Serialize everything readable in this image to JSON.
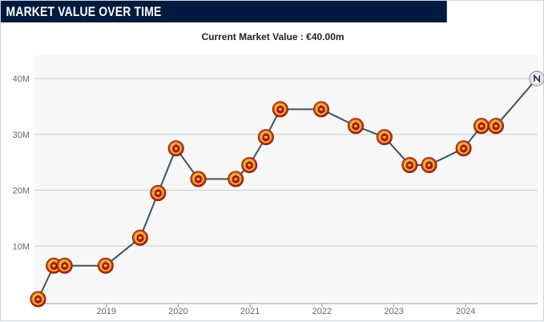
{
  "header": {
    "title": "MARKET VALUE OVER TIME"
  },
  "summary": {
    "label": "Current Market Value : ",
    "value": "€40.00m"
  },
  "colors": {
    "header_bg": "#001a3f",
    "line": "#3d4f66",
    "plot_bg": "#f7f7f7",
    "grid": "#cccccc",
    "marker_red": "#d3200a",
    "marker_gold": "#f0b428"
  },
  "chart_data": {
    "type": "line",
    "title": "",
    "xlabel": "",
    "ylabel": "",
    "ylim": [
      0,
      40000000
    ],
    "y_ticks": [
      {
        "value": 10000000,
        "label": "10M"
      },
      {
        "value": 20000000,
        "label": "20M"
      },
      {
        "value": 30000000,
        "label": "30M"
      },
      {
        "value": 40000000,
        "label": "40M"
      }
    ],
    "x_ticks": [
      {
        "value": 2019,
        "label": "2019"
      },
      {
        "value": 2020,
        "label": "2020"
      },
      {
        "value": 2021,
        "label": "2021"
      },
      {
        "value": 2022,
        "label": "2022"
      },
      {
        "value": 2023,
        "label": "2023"
      },
      {
        "value": 2024,
        "label": "2024"
      }
    ],
    "grid": true,
    "legend": "none",
    "series": [
      {
        "points": [
          {
            "date": 2018.05,
            "value": 500000,
            "club_icon": "club-crest-icon"
          },
          {
            "date": 2018.27,
            "value": 6500000,
            "club_icon": "club-crest-icon"
          },
          {
            "date": 2018.42,
            "value": 6500000,
            "club_icon": "club-crest-icon"
          },
          {
            "date": 2018.99,
            "value": 6500000,
            "club_icon": "club-crest-icon"
          },
          {
            "date": 2019.47,
            "value": 11500000,
            "club_icon": "club-crest-icon"
          },
          {
            "date": 2019.72,
            "value": 19500000,
            "club_icon": "club-crest-icon"
          },
          {
            "date": 2019.97,
            "value": 27500000,
            "club_icon": "club-crest-icon"
          },
          {
            "date": 2020.28,
            "value": 22000000,
            "club_icon": "club-crest-icon"
          },
          {
            "date": 2020.8,
            "value": 22000000,
            "club_icon": "club-crest-icon"
          },
          {
            "date": 2020.99,
            "value": 24500000,
            "club_icon": "club-crest-icon"
          },
          {
            "date": 2021.22,
            "value": 29500000,
            "club_icon": "club-crest-icon"
          },
          {
            "date": 2021.42,
            "value": 34500000,
            "club_icon": "club-crest-icon"
          },
          {
            "date": 2021.99,
            "value": 34500000,
            "club_icon": "club-crest-icon"
          },
          {
            "date": 2022.47,
            "value": 31500000,
            "club_icon": "club-crest-icon"
          },
          {
            "date": 2022.87,
            "value": 29500000,
            "club_icon": "club-crest-icon"
          },
          {
            "date": 2023.22,
            "value": 24500000,
            "club_icon": "club-crest-icon"
          },
          {
            "date": 2023.49,
            "value": 24500000,
            "club_icon": "club-crest-icon"
          },
          {
            "date": 2023.97,
            "value": 27500000,
            "club_icon": "club-crest-icon"
          },
          {
            "date": 2024.22,
            "value": 31500000,
            "club_icon": "club-crest-icon"
          },
          {
            "date": 2024.42,
            "value": 31500000,
            "club_icon": "club-crest-icon"
          },
          {
            "date": 2024.99,
            "value": 40000000,
            "club_icon": "napoli-crest-icon"
          }
        ]
      }
    ]
  }
}
